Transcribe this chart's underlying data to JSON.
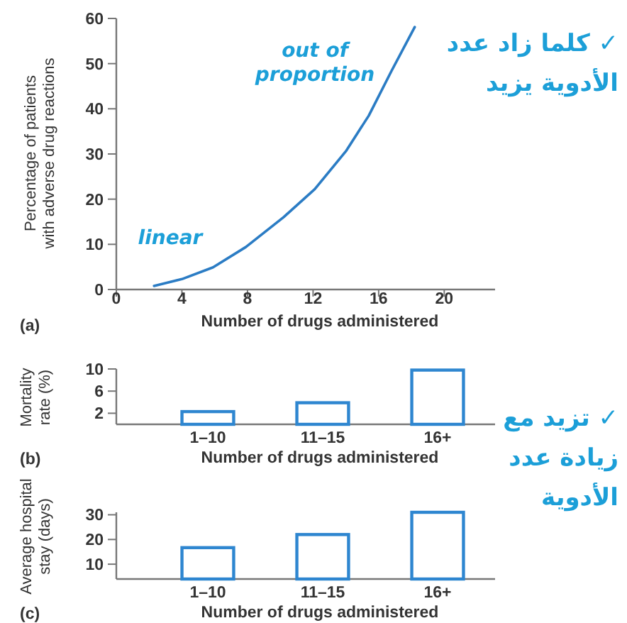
{
  "chart_data": [
    {
      "type": "line",
      "xlabel": "Number of drugs administered",
      "ylabel": "Percentage of patients with adverse drug reactions",
      "x": [
        2.3,
        4,
        5.9,
        7.9,
        10.2,
        12.1,
        14,
        15.4,
        16.8,
        18.2
      ],
      "series": [
        {
          "color": "#2b7cc4",
          "values": [
            0.8,
            2.3,
            4.9,
            9.4,
            16,
            22.2,
            30.6,
            38.5,
            48.5,
            58.1
          ]
        }
      ],
      "xlim": [
        0,
        23.1
      ],
      "xticks": [
        0,
        4,
        8,
        12,
        16,
        20
      ],
      "ylim": [
        0,
        60
      ],
      "yticks": [
        0,
        10,
        20,
        30,
        40,
        50,
        60
      ],
      "annotations": [
        "(a)",
        "linear",
        "out of proportion",
        "✓ كلما زاد عدد الأدوية يزيد"
      ]
    },
    {
      "type": "bar",
      "xlabel": "Number of drugs administered",
      "ylabel": "Mortality rate (%)",
      "categories": [
        "1–10",
        "11–15",
        "16+"
      ],
      "series": [
        {
          "color": "#2e86d0",
          "values": [
            2.3,
            3.9,
            9.8
          ]
        }
      ],
      "ylim": [
        0,
        10
      ],
      "yticks": [
        2,
        6,
        10
      ],
      "annotations": [
        "(b)",
        "✓ تزيد مع زيادة عدد الأدوية"
      ]
    },
    {
      "type": "bar",
      "xlabel": "Number of drugs administered",
      "ylabel": "Average hospital stay (days)",
      "categories": [
        "1–10",
        "11–15",
        "16+"
      ],
      "series": [
        {
          "color": "#2e86d0",
          "values": [
            16.7,
            22,
            31
          ]
        }
      ],
      "ylim": [
        4,
        31
      ],
      "yticks": [
        10,
        20,
        30
      ],
      "annotations": [
        "(c)"
      ]
    }
  ]
}
